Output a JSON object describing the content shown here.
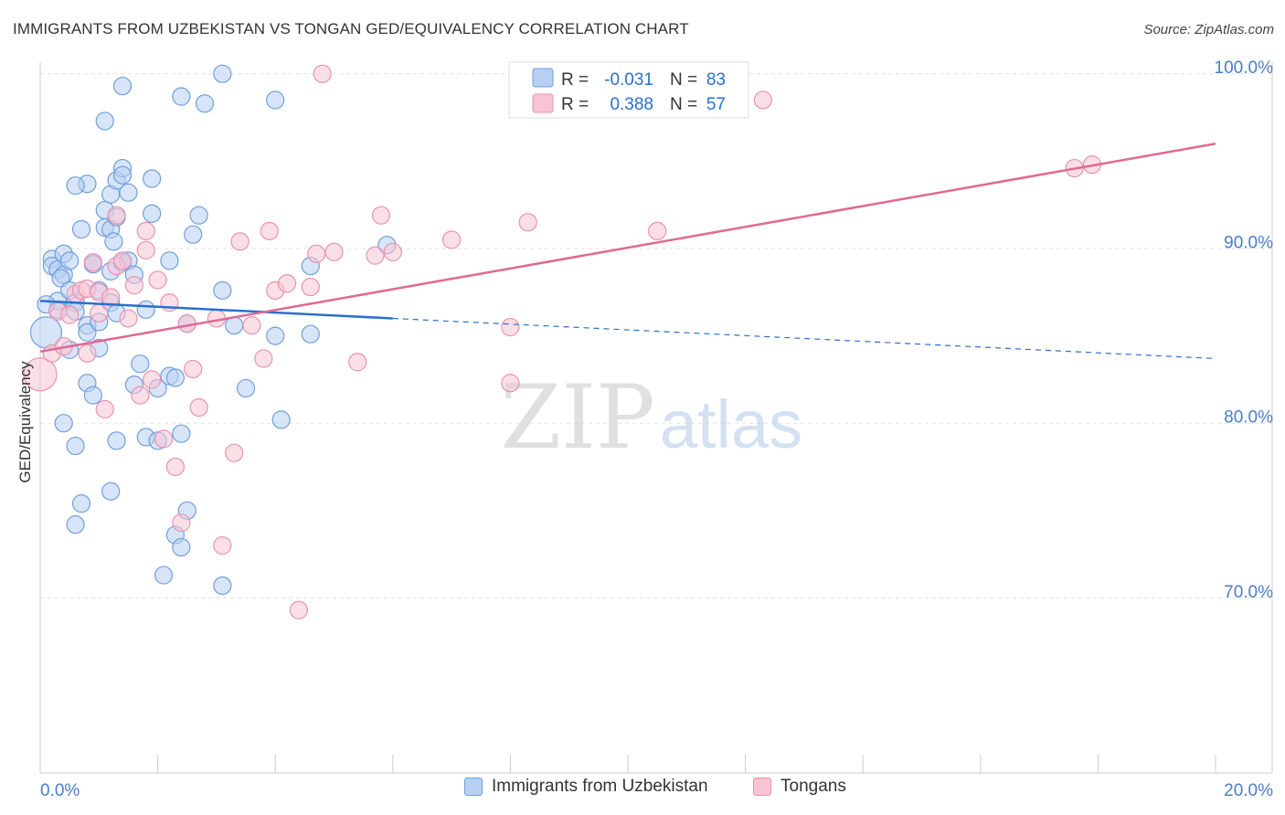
{
  "title": "IMMIGRANTS FROM UZBEKISTAN VS TONGAN GED/EQUIVALENCY CORRELATION CHART",
  "source": "Source: ZipAtlas.com",
  "watermark": {
    "zip": "ZIP",
    "atlas": "atlas"
  },
  "colors": {
    "blue_fill": "#b8d0f3",
    "blue_stroke": "#6f9fdc",
    "blue_line": "#2a6fce",
    "pink_fill": "#f8c4d4",
    "pink_stroke": "#e893b0",
    "pink_line": "#e06892",
    "axis_text": "#4a7cc8",
    "grid": "#e2e2e2"
  },
  "legend_top": {
    "rows": [
      {
        "r_label": "R =",
        "r_value": "-0.031",
        "n_label": "N =",
        "n_value": "83"
      },
      {
        "r_label": "R =",
        "r_value": "0.388",
        "n_label": "N =",
        "n_value": "57"
      }
    ]
  },
  "chart_data": {
    "type": "scatter",
    "title": "IMMIGRANTS FROM UZBEKISTAN VS TONGAN GED/EQUIVALENCY CORRELATION CHART",
    "xlabel": "",
    "ylabel": "GED/Equivalency",
    "xlim": [
      0,
      20
    ],
    "ylim": [
      60,
      101
    ],
    "x_tick_labels": [
      "0.0%",
      "20.0%"
    ],
    "y_ticks": [
      70,
      80,
      90,
      100
    ],
    "y_tick_labels": [
      "70.0%",
      "80.0%",
      "90.0%",
      "100.0%"
    ],
    "legend_position": "top-center",
    "series": [
      {
        "name": "Immigrants from Uzbekistan",
        "r": -0.031,
        "n": 83,
        "trend": {
          "x0": 0,
          "y0": 87.0,
          "x_solid_end": 6.0,
          "y_solid_end": 86.0,
          "x1": 20.0,
          "y1": 83.7
        },
        "points": [
          [
            0.1,
            85.2
          ],
          [
            0.2,
            89.4
          ],
          [
            0.2,
            89.0
          ],
          [
            0.3,
            88.8
          ],
          [
            0.3,
            87.0
          ],
          [
            0.3,
            86.5
          ],
          [
            0.4,
            88.5
          ],
          [
            0.4,
            89.7
          ],
          [
            0.35,
            88.3
          ],
          [
            0.5,
            87.6
          ],
          [
            0.5,
            89.3
          ],
          [
            0.6,
            86.9
          ],
          [
            0.6,
            86.4
          ],
          [
            0.5,
            84.2
          ],
          [
            0.4,
            80.0
          ],
          [
            0.6,
            78.7
          ],
          [
            0.7,
            75.4
          ],
          [
            0.6,
            74.2
          ],
          [
            0.7,
            91.1
          ],
          [
            0.8,
            93.7
          ],
          [
            0.6,
            93.6
          ],
          [
            0.8,
            85.6
          ],
          [
            0.8,
            85.2
          ],
          [
            0.8,
            82.3
          ],
          [
            0.9,
            81.6
          ],
          [
            0.9,
            89.2
          ],
          [
            0.9,
            89.1
          ],
          [
            1.0,
            87.6
          ],
          [
            1.0,
            85.8
          ],
          [
            1.0,
            84.3
          ],
          [
            1.1,
            91.2
          ],
          [
            1.1,
            92.2
          ],
          [
            1.1,
            97.3
          ],
          [
            1.2,
            93.1
          ],
          [
            1.2,
            91.1
          ],
          [
            1.25,
            90.4
          ],
          [
            1.2,
            88.7
          ],
          [
            1.2,
            86.9
          ],
          [
            1.3,
            86.3
          ],
          [
            1.3,
            79.0
          ],
          [
            1.2,
            76.1
          ],
          [
            1.3,
            93.9
          ],
          [
            1.3,
            91.8
          ],
          [
            1.4,
            94.6
          ],
          [
            1.4,
            94.2
          ],
          [
            1.5,
            93.2
          ],
          [
            1.4,
            89.2
          ],
          [
            1.5,
            89.3
          ],
          [
            1.6,
            88.5
          ],
          [
            1.6,
            82.2
          ],
          [
            1.7,
            83.4
          ],
          [
            1.8,
            86.5
          ],
          [
            1.9,
            94.0
          ],
          [
            1.8,
            79.2
          ],
          [
            1.9,
            92.0
          ],
          [
            2.0,
            79.0
          ],
          [
            2.0,
            82.0
          ],
          [
            2.1,
            71.3
          ],
          [
            2.2,
            89.3
          ],
          [
            2.2,
            82.7
          ],
          [
            2.3,
            82.6
          ],
          [
            2.3,
            73.6
          ],
          [
            2.4,
            79.4
          ],
          [
            2.4,
            72.9
          ],
          [
            2.5,
            75.0
          ],
          [
            2.5,
            85.7
          ],
          [
            2.6,
            90.8
          ],
          [
            2.7,
            91.9
          ],
          [
            2.8,
            98.3
          ],
          [
            2.4,
            98.7
          ],
          [
            1.4,
            99.3
          ],
          [
            3.1,
            70.7
          ],
          [
            3.1,
            87.6
          ],
          [
            3.1,
            100.0
          ],
          [
            3.3,
            85.6
          ],
          [
            3.5,
            82.0
          ],
          [
            4.0,
            98.5
          ],
          [
            4.0,
            85.0
          ],
          [
            4.1,
            80.2
          ],
          [
            4.6,
            89.0
          ],
          [
            4.6,
            85.1
          ],
          [
            5.9,
            90.2
          ],
          [
            0.1,
            86.8
          ]
        ]
      },
      {
        "name": "Tongans",
        "r": 0.388,
        "n": 57,
        "trend": {
          "x0": 0,
          "y0": 84.1,
          "x1": 20.0,
          "y1": 96.0
        },
        "points": [
          [
            0.0,
            82.8
          ],
          [
            0.2,
            84.0
          ],
          [
            0.3,
            86.4
          ],
          [
            0.4,
            84.4
          ],
          [
            0.5,
            86.2
          ],
          [
            0.6,
            87.4
          ],
          [
            0.7,
            87.6
          ],
          [
            0.8,
            87.7
          ],
          [
            0.8,
            84.0
          ],
          [
            0.9,
            89.2
          ],
          [
            1.0,
            87.5
          ],
          [
            1.0,
            86.3
          ],
          [
            1.1,
            80.8
          ],
          [
            1.2,
            87.2
          ],
          [
            1.3,
            91.9
          ],
          [
            1.3,
            89.0
          ],
          [
            1.4,
            89.3
          ],
          [
            1.5,
            86.0
          ],
          [
            1.6,
            87.9
          ],
          [
            1.7,
            81.6
          ],
          [
            1.8,
            89.9
          ],
          [
            1.8,
            91.0
          ],
          [
            1.9,
            82.5
          ],
          [
            2.0,
            88.2
          ],
          [
            2.1,
            79.1
          ],
          [
            2.2,
            86.9
          ],
          [
            2.3,
            77.5
          ],
          [
            2.4,
            74.3
          ],
          [
            2.5,
            85.7
          ],
          [
            2.6,
            83.1
          ],
          [
            2.7,
            80.9
          ],
          [
            3.0,
            86.0
          ],
          [
            3.1,
            73.0
          ],
          [
            3.3,
            78.3
          ],
          [
            3.4,
            90.4
          ],
          [
            3.6,
            85.6
          ],
          [
            3.8,
            83.7
          ],
          [
            3.9,
            91.0
          ],
          [
            4.0,
            87.6
          ],
          [
            4.2,
            88.0
          ],
          [
            4.4,
            69.3
          ],
          [
            4.6,
            87.8
          ],
          [
            4.7,
            89.7
          ],
          [
            4.8,
            100.0
          ],
          [
            5.0,
            89.8
          ],
          [
            5.4,
            83.5
          ],
          [
            5.7,
            89.6
          ],
          [
            5.8,
            91.9
          ],
          [
            6.0,
            89.8
          ],
          [
            7.0,
            90.5
          ],
          [
            8.0,
            82.3
          ],
          [
            8.0,
            85.5
          ],
          [
            8.3,
            91.5
          ],
          [
            10.5,
            91.0
          ],
          [
            12.3,
            98.5
          ],
          [
            17.6,
            94.6
          ],
          [
            17.9,
            94.8
          ]
        ]
      }
    ]
  },
  "legend_bottom": [
    {
      "label": "Immigrants from Uzbekistan"
    },
    {
      "label": "Tongans"
    }
  ]
}
